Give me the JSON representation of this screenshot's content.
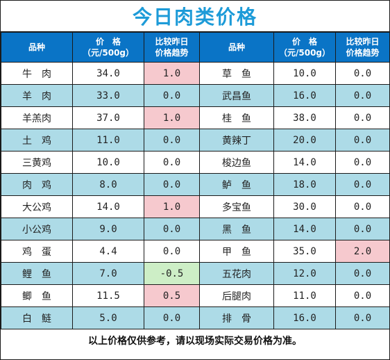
{
  "title": "今日肉类价格",
  "headers": {
    "name": "品种",
    "price_line1": "价　格",
    "price_line2": "（元/500g）",
    "trend_line1": "比较昨日",
    "trend_line2": "价格趋势"
  },
  "rows": [
    {
      "left": {
        "name": "牛　肉",
        "price": "34.0",
        "change": "1.0",
        "trend": "up"
      },
      "right": {
        "name": "草　鱼",
        "price": "10.0",
        "change": "0.0",
        "trend": "flat"
      }
    },
    {
      "left": {
        "name": "羊　肉",
        "price": "33.0",
        "change": "0.0",
        "trend": "flat"
      },
      "right": {
        "name": "武昌鱼",
        "price": "16.0",
        "change": "0.0",
        "trend": "flat"
      }
    },
    {
      "left": {
        "name": "羊羔肉",
        "price": "37.0",
        "change": "1.0",
        "trend": "up"
      },
      "right": {
        "name": "桂　鱼",
        "price": "38.0",
        "change": "0.0",
        "trend": "flat"
      }
    },
    {
      "left": {
        "name": "土　鸡",
        "price": "11.0",
        "change": "0.0",
        "trend": "flat"
      },
      "right": {
        "name": "黄辣丁",
        "price": "20.0",
        "change": "0.0",
        "trend": "flat"
      }
    },
    {
      "left": {
        "name": "三黄鸡",
        "price": "10.0",
        "change": "0.0",
        "trend": "flat"
      },
      "right": {
        "name": "梭边鱼",
        "price": "14.0",
        "change": "0.0",
        "trend": "flat"
      }
    },
    {
      "left": {
        "name": "肉　鸡",
        "price": "8.0",
        "change": "0.0",
        "trend": "flat"
      },
      "right": {
        "name": "鲈　鱼",
        "price": "18.0",
        "change": "0.0",
        "trend": "flat"
      }
    },
    {
      "left": {
        "name": "大公鸡",
        "price": "14.0",
        "change": "1.0",
        "trend": "up"
      },
      "right": {
        "name": "多宝鱼",
        "price": "30.0",
        "change": "0.0",
        "trend": "flat"
      }
    },
    {
      "left": {
        "name": "小公鸡",
        "price": "9.0",
        "change": "0.0",
        "trend": "flat"
      },
      "right": {
        "name": "黑　鱼",
        "price": "14.0",
        "change": "0.0",
        "trend": "flat"
      }
    },
    {
      "left": {
        "name": "鸡　蛋",
        "price": "4.4",
        "change": "0.0",
        "trend": "flat"
      },
      "right": {
        "name": "甲　鱼",
        "price": "35.0",
        "change": "2.0",
        "trend": "up"
      }
    },
    {
      "left": {
        "name": "鲤　鱼",
        "price": "7.0",
        "change": "-0.5",
        "trend": "down"
      },
      "right": {
        "name": "五花肉",
        "price": "12.0",
        "change": "0.0",
        "trend": "flat"
      }
    },
    {
      "left": {
        "name": "鲫　鱼",
        "price": "11.5",
        "change": "0.5",
        "trend": "up"
      },
      "right": {
        "name": "后腿肉",
        "price": "11.0",
        "change": "0.0",
        "trend": "flat"
      }
    },
    {
      "left": {
        "name": "白　鲢",
        "price": "5.0",
        "change": "0.0",
        "trend": "flat"
      },
      "right": {
        "name": "排　骨",
        "price": "16.0",
        "change": "0.0",
        "trend": "flat"
      }
    }
  ],
  "footer_note": "以上价格仅供参考，请以现场实际交易价格为准。",
  "colors": {
    "title": "#1d9bd8",
    "header_bg": "#0a74c6",
    "stripe": "#addbe7",
    "up": "#f6c9ce",
    "down": "#cdeec6"
  }
}
